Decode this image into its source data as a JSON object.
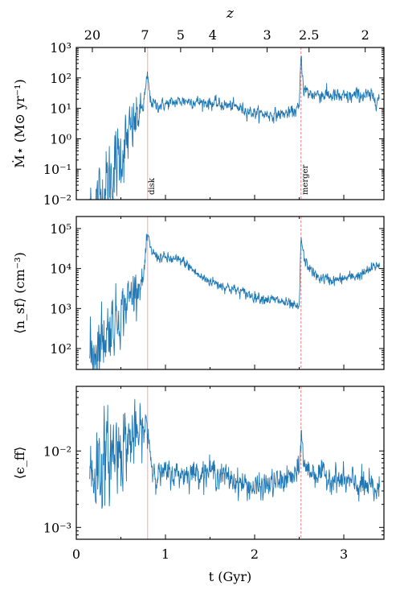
{
  "chart_data": [
    {
      "type": "line",
      "panel": "top",
      "ylabel": "Ṁ⋆ (M⊙ yr⁻¹)",
      "yscale": "log",
      "ylim": [
        0.01,
        1000
      ],
      "yticks": [
        "10⁻²",
        "10⁻¹",
        "10⁰",
        "10¹",
        "10²",
        "10³"
      ],
      "xlim": [
        0,
        3.45
      ],
      "top_axis": {
        "label": "z",
        "ticks": [
          {
            "z": "20",
            "t": 0.18
          },
          {
            "z": "7",
            "t": 0.77
          },
          {
            "z": "5",
            "t": 1.17
          },
          {
            "z": "4",
            "t": 1.53
          },
          {
            "z": "3",
            "t": 2.14
          },
          {
            "z": "2.5",
            "t": 2.61
          },
          {
            "z": "2",
            "t": 3.24
          }
        ]
      },
      "annotations": [
        {
          "text": "disk",
          "t": 0.8,
          "line": "solid"
        },
        {
          "text": "merger",
          "t": 2.52,
          "line": "dashed"
        }
      ],
      "series_knots": {
        "t": [
          0.15,
          0.3,
          0.5,
          0.65,
          0.75,
          0.8,
          0.83,
          0.9,
          1.2,
          1.5,
          1.8,
          2.0,
          2.2,
          2.4,
          2.5,
          2.52,
          2.55,
          2.6,
          2.8,
          3.0,
          3.2,
          3.4
        ],
        "value": [
          0.003,
          0.015,
          0.3,
          3,
          12,
          110,
          18,
          12,
          18,
          15,
          11,
          7,
          6,
          7,
          10,
          600,
          45,
          30,
          28,
          22,
          28,
          20
        ],
        "spread_dex": [
          0.8,
          0.8,
          0.7,
          0.5,
          0.2,
          0.15,
          0.12,
          0.12,
          0.12,
          0.12,
          0.12,
          0.12,
          0.12,
          0.12,
          0.12,
          0.12,
          0.15,
          0.15,
          0.15,
          0.15,
          0.15,
          0.15
        ]
      }
    },
    {
      "type": "line",
      "panel": "middle",
      "ylabel": "⟨n_sf⟩ (cm⁻³)",
      "yscale": "log",
      "ylim": [
        30,
        200000
      ],
      "yticks": [
        "10²",
        "10³",
        "10⁴",
        "10⁵"
      ],
      "xlim": [
        0,
        3.45
      ],
      "annotations": [
        {
          "text": "",
          "t": 0.8,
          "line": "solid"
        },
        {
          "text": "",
          "t": 2.52,
          "line": "dashed"
        }
      ],
      "series_knots": {
        "t": [
          0.15,
          0.3,
          0.5,
          0.65,
          0.75,
          0.8,
          0.83,
          0.9,
          1.2,
          1.4,
          1.6,
          2.0,
          2.3,
          2.45,
          2.5,
          2.52,
          2.56,
          2.7,
          2.9,
          3.2,
          3.4
        ],
        "value": [
          60,
          200,
          800,
          3000,
          5000,
          70000,
          30000,
          20000,
          15000,
          6000,
          4000,
          2000,
          1500,
          1100,
          1000,
          60000,
          15000,
          6000,
          5000,
          7000,
          13000
        ],
        "spread_dex": [
          0.5,
          0.5,
          0.4,
          0.3,
          0.15,
          0.12,
          0.08,
          0.08,
          0.08,
          0.08,
          0.08,
          0.08,
          0.08,
          0.08,
          0.08,
          0.08,
          0.08,
          0.08,
          0.08,
          0.08,
          0.08
        ]
      }
    },
    {
      "type": "line",
      "panel": "bottom",
      "ylabel": "⟨ϵ_ff⟩",
      "yscale": "log",
      "ylim": [
        0.0007,
        0.07
      ],
      "yticks": [
        "10⁻³",
        "10⁻²"
      ],
      "xlim": [
        0,
        3.45
      ],
      "xlabel": "t (Gyr)",
      "xticks": [
        0,
        1,
        2,
        3
      ],
      "annotations": [
        {
          "text": "",
          "t": 0.8,
          "line": "solid"
        },
        {
          "text": "",
          "t": 2.52,
          "line": "dashed"
        }
      ],
      "series_knots": {
        "t": [
          0.15,
          0.3,
          0.5,
          0.7,
          0.8,
          0.85,
          0.9,
          1.2,
          1.5,
          1.8,
          2.0,
          2.3,
          2.5,
          2.52,
          2.56,
          2.7,
          3.0,
          3.2,
          3.4
        ],
        "value": [
          0.005,
          0.007,
          0.012,
          0.016,
          0.02,
          0.006,
          0.005,
          0.005,
          0.0055,
          0.004,
          0.0032,
          0.004,
          0.005,
          0.018,
          0.006,
          0.005,
          0.004,
          0.0035,
          0.003
        ],
        "spread_dex": [
          0.4,
          0.35,
          0.3,
          0.2,
          0.15,
          0.12,
          0.1,
          0.1,
          0.1,
          0.1,
          0.1,
          0.1,
          0.1,
          0.1,
          0.1,
          0.1,
          0.1,
          0.12,
          0.12
        ]
      }
    }
  ],
  "colors": {
    "series": "#1f77b4",
    "disk_line": "#f4a6a6",
    "merger_line": "#f08080",
    "annotation_text": "#f0a0a0",
    "axes": "#000000"
  }
}
